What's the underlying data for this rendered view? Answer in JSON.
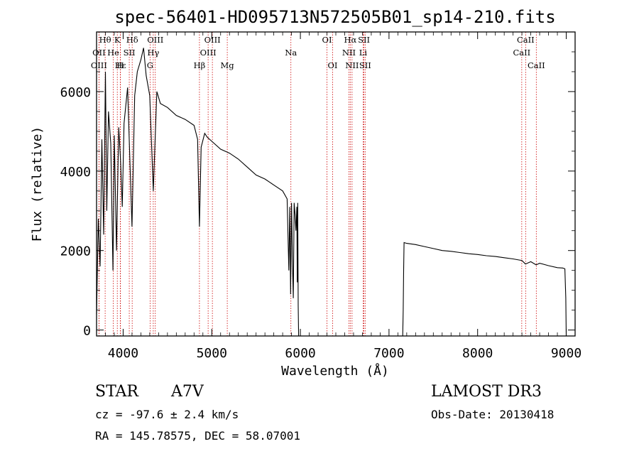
{
  "chart_data": {
    "type": "line",
    "title": "spec-56401-HD095713N572505B01_sp14-210.fits",
    "xlabel": "Wavelength (Å)",
    "ylabel": "Flux (relative)",
    "xlim": [
      3700,
      9100
    ],
    "ylim": [
      -150,
      7500
    ],
    "xticks": [
      4000,
      5000,
      6000,
      7000,
      8000,
      9000
    ],
    "yticks": [
      0,
      2000,
      4000,
      6000
    ],
    "series": [
      {
        "name": "flux",
        "segments": [
          {
            "x": [
              3700,
              3720,
              3740,
              3760,
              3780,
              3800,
              3815,
              3835,
              3860,
              3885,
              3900,
              3925,
              3950,
              3970,
              3990,
              4010,
              4050,
              4100,
              4130,
              4160,
              4200,
              4230,
              4260,
              4300,
              4340,
              4380,
              4420,
              4500,
              4600,
              4700,
              4800,
              4840,
              4861,
              4880,
              4920,
              4950,
              5000,
              5100,
              5200,
              5300,
              5400,
              5500,
              5600,
              5700,
              5800,
              5850,
              5870,
              5880,
              5890,
              5900,
              5910,
              5920,
              5930,
              5940,
              5950,
              5960,
              5965,
              5970,
              5975,
              5980
            ],
            "y": [
              400,
              2800,
              1600,
              4800,
              2400,
              6500,
              3000,
              5500,
              4700,
              1500,
              4900,
              2000,
              5100,
              4300,
              3100,
              5200,
              6100,
              2600,
              5900,
              6500,
              6800,
              7100,
              6400,
              5900,
              3500,
              6000,
              5700,
              5600,
              5400,
              5300,
              5150,
              4800,
              2600,
              4600,
              4950,
              4850,
              4750,
              4550,
              4450,
              4300,
              4100,
              3900,
              3800,
              3650,
              3500,
              3300,
              1500,
              3100,
              900,
              3200,
              1800,
              800,
              3200,
              2900,
              2500,
              3100,
              1200,
              3200,
              600,
              -150
            ]
          },
          {
            "x": [
              7155,
              7160,
              7165,
              7170,
              7200,
              7300,
              7400,
              7500,
              7600,
              7700,
              7800,
              7900,
              8000,
              8100,
              8200,
              8300,
              8400,
              8500,
              8540,
              8600,
              8660,
              8700,
              8800,
              8900,
              8960,
              8985,
              8995,
              9000
            ],
            "y": [
              -150,
              500,
              1500,
              2200,
              2180,
              2150,
              2100,
              2050,
              2000,
              1980,
              1950,
              1920,
              1900,
              1870,
              1850,
              1820,
              1790,
              1750,
              1660,
              1720,
              1640,
              1680,
              1620,
              1570,
              1560,
              1540,
              800,
              -150
            ]
          }
        ]
      }
    ],
    "spectral_lines": [
      {
        "label": "Hθ",
        "x": 3797,
        "row": 0
      },
      {
        "label": "K",
        "x": 3934,
        "row": 0
      },
      {
        "label": "Hδ",
        "x": 4102,
        "row": 0
      },
      {
        "label": "OIII",
        "x": 4363,
        "row": 0
      },
      {
        "label": "OIII",
        "x": 5007,
        "row": 0
      },
      {
        "label": "OI",
        "x": 6300,
        "row": 0
      },
      {
        "label": "Hα",
        "x": 6563,
        "row": 0
      },
      {
        "label": "SII",
        "x": 6717,
        "row": 0
      },
      {
        "label": "CaII",
        "x": 8542,
        "row": 0
      },
      {
        "label": "OII",
        "x": 3727,
        "row": 1
      },
      {
        "label": "He",
        "x": 3889,
        "row": 1
      },
      {
        "label": "SII",
        "x": 4069,
        "row": 1
      },
      {
        "label": "Hγ",
        "x": 4340,
        "row": 1
      },
      {
        "label": "OIII",
        "x": 4959,
        "row": 1
      },
      {
        "label": "NII",
        "x": 6548,
        "row": 1
      },
      {
        "label": "Li",
        "x": 6708,
        "row": 1
      },
      {
        "label": "CaII",
        "x": 8498,
        "row": 1
      },
      {
        "label": "OIII",
        "x": 3727,
        "row": 2
      },
      {
        "label": "Hε",
        "x": 3970,
        "row": 2
      },
      {
        "label": "H",
        "x": 3968,
        "row": 2
      },
      {
        "label": "G",
        "x": 4304,
        "row": 2
      },
      {
        "label": "Hβ",
        "x": 4861,
        "row": 2
      },
      {
        "label": "Mg",
        "x": 5175,
        "row": 2
      },
      {
        "label": "Na",
        "x": 5893,
        "row": 1
      },
      {
        "label": "OI",
        "x": 6364,
        "row": 2
      },
      {
        "label": "NII",
        "x": 6583,
        "row": 2
      },
      {
        "label": "SII",
        "x": 6731,
        "row": 2
      },
      {
        "label": "CaII",
        "x": 8662,
        "row": 2
      }
    ]
  },
  "info": {
    "object_class": "STAR",
    "subclass": "A7V",
    "survey": "LAMOST DR3",
    "redshift": "cz = -97.6 ± 2.4 km/s",
    "obs_date": "Obs-Date: 20130418",
    "coords": "RA = 145.78575, DEC =  58.07001"
  },
  "colors": {
    "line": "#000000",
    "marker": "#cc0000"
  }
}
